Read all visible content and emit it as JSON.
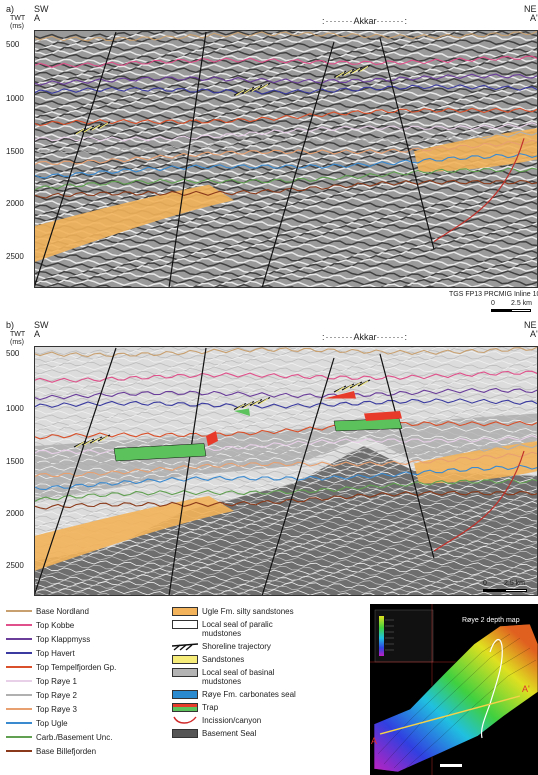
{
  "panel_a": {
    "letter": "a)",
    "left_dir": "SW",
    "left_pt": "A",
    "right_dir": "NE",
    "right_pt": "A'",
    "axis_unit_line1": "TWT",
    "axis_unit_line2": "(ms)",
    "ticks": [
      "500",
      "1000",
      "1500",
      "2000",
      "2500"
    ],
    "structure_label": "Akkar",
    "credit": "TGS FP13 PRCMIG Inline 1040",
    "scale_zero": "0",
    "scale_value": "2.5 km"
  },
  "panel_b": {
    "letter": "b)",
    "left_dir": "SW",
    "left_pt": "A",
    "right_dir": "NE",
    "right_pt": "A'",
    "axis_unit_line1": "TWT",
    "axis_unit_line2": "(ms)",
    "ticks": [
      "500",
      "1000",
      "1500",
      "2000",
      "2500"
    ],
    "structure_label": "Akkar",
    "scale_zero": "0",
    "scale_value": "2.5 km"
  },
  "legend_horizons": [
    {
      "label": "Base Nordland",
      "color": "#c8a070"
    },
    {
      "label": "Top Kobbe",
      "color": "#e0508a"
    },
    {
      "label": "Top Klappmyss",
      "color": "#6a3d9a"
    },
    {
      "label": "Top Havert",
      "color": "#3a3aa0"
    },
    {
      "label": "Top Tempelfjorden Gp.",
      "color": "#d9502a"
    },
    {
      "label": "Top Røye 1",
      "color": "#e8d0e8"
    },
    {
      "label": "Top Røye 2",
      "color": "#b0b0b0"
    },
    {
      "label": "Top Røye 3",
      "color": "#e8a070"
    },
    {
      "label": "Top Ugle",
      "color": "#3a8ad0"
    },
    {
      "label": "Carb./Basement Unc.",
      "color": "#60a050"
    },
    {
      "label": "Base Billefjorden",
      "color": "#8a3a1a"
    }
  ],
  "legend_units": [
    {
      "label": "Ugle Fm. silty sandstones",
      "fill": "#f2b35a"
    },
    {
      "label": "Local seal of paralic",
      "label2": "mudstones",
      "fill": "#ffffff"
    },
    {
      "label": "Shoreline trajectory",
      "fill": "shoreline"
    },
    {
      "label": "Sandstones",
      "fill": "#f6ec7a"
    },
    {
      "label": "Local seal of basinal",
      "label2": "mudstones",
      "fill": "#b4b4b4"
    },
    {
      "label": "Røye Fm. carbonates seal",
      "fill": "#2a8ad0"
    },
    {
      "label": "Trap",
      "fill": "trap"
    },
    {
      "label": "Incission/canyon",
      "fill": "canyon"
    },
    {
      "label": "Basement Seal",
      "fill": "#555555"
    }
  ],
  "map": {
    "title": "Røye 2 depth map",
    "point_a": "A",
    "point_a_prime": "A'"
  },
  "colors": {
    "sand": "#f2b35a",
    "basement": "#6a6a6a",
    "trap_green": "#5cc25c",
    "trap_red": "#e83a2a"
  }
}
